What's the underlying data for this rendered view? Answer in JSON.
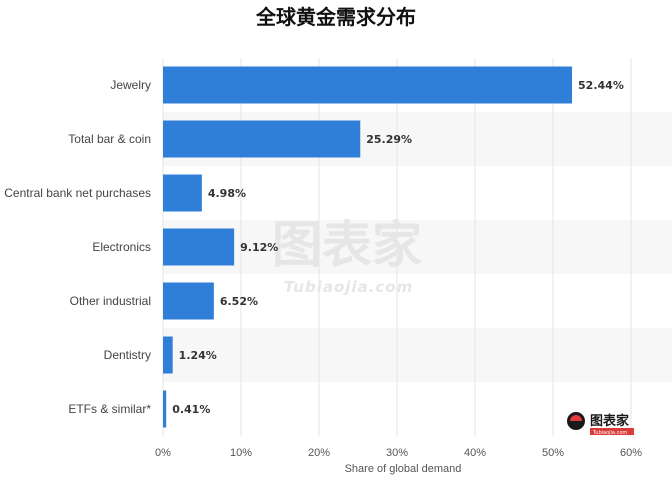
{
  "chart_data": {
    "type": "bar",
    "orientation": "horizontal",
    "title": "全球黄金需求分布",
    "categories": [
      "Jewelry",
      "Total bar & coin",
      "Central bank net purchases",
      "Electronics",
      "Other industrial",
      "Dentistry",
      "ETFs & similar*"
    ],
    "values": [
      52.44,
      25.29,
      4.98,
      9.12,
      6.52,
      1.24,
      0.41
    ],
    "value_labels": [
      "52.44%",
      "25.29%",
      "4.98%",
      "9.12%",
      "6.52%",
      "1.24%",
      "0.41%"
    ],
    "xlabel": "Share of global demand",
    "ylabel": "",
    "xlim": [
      0,
      60
    ],
    "x_ticks": [
      0,
      10,
      20,
      30,
      40,
      50,
      60
    ],
    "x_tick_labels": [
      "0%",
      "10%",
      "20%",
      "30%",
      "40%",
      "50%",
      "60%"
    ],
    "grid": true,
    "legend": "none",
    "bar_color": "#2f7ed8",
    "band_color": "#f7f7f7",
    "grid_color": "#e4e4e4"
  },
  "watermark": {
    "big": "图表家",
    "small": "Tubiaojia.com"
  },
  "logo": {
    "text": "图表家",
    "sub": "Tubiaojia.com"
  }
}
